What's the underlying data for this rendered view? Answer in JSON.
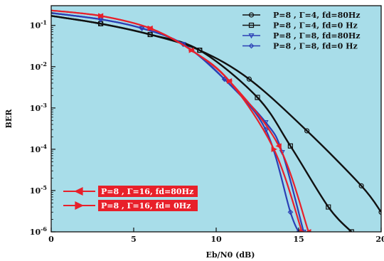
{
  "chart_data": {
    "type": "line",
    "title": "",
    "xlabel": "Eb/N0 (dB)",
    "ylabel": "BER",
    "y_scale": "log",
    "xlim": [
      0,
      20
    ],
    "ylim": [
      1e-06,
      0.3
    ],
    "grid": false,
    "background_color": "#a8dde9",
    "x_ticks": [
      {
        "value": 0,
        "label": "0"
      },
      {
        "value": 5,
        "label": "5"
      },
      {
        "value": 10,
        "label": "10"
      },
      {
        "value": 15,
        "label": "15"
      },
      {
        "value": 20,
        "label": "20"
      }
    ],
    "y_ticks": [
      {
        "value": 0.1,
        "base": "10",
        "exp": "-1"
      },
      {
        "value": 0.01,
        "base": "10",
        "exp": "-2"
      },
      {
        "value": 0.001,
        "base": "10",
        "exp": "-3"
      },
      {
        "value": 0.0001,
        "base": "10",
        "exp": "-4"
      },
      {
        "value": 1e-05,
        "base": "10",
        "exp": "-5"
      },
      {
        "value": 1e-06,
        "base": "10",
        "exp": "-6"
      }
    ],
    "series": [
      {
        "name": "P=8 , Γ=4, fd=80Hz",
        "color": "#111111",
        "marker": "circle",
        "legend_group": "top",
        "x": [
          0,
          3,
          6,
          9,
          12,
          15.5,
          18.8,
          20
        ],
        "y": [
          0.17,
          0.11,
          0.06,
          0.025,
          0.005,
          0.00028,
          1.3e-05,
          3e-06
        ]
      },
      {
        "name": "P=8 , Γ=4, fd=0 Hz",
        "color": "#111111",
        "marker": "square",
        "legend_group": "top",
        "x": [
          0,
          3,
          6,
          9,
          12.5,
          14.5,
          16.8,
          18.2
        ],
        "y": [
          0.17,
          0.11,
          0.06,
          0.025,
          0.0018,
          0.00012,
          4e-06,
          1e-06
        ]
      },
      {
        "name": "P=8 , Γ=8, fd=80Hz",
        "color": "#2b3fb5",
        "marker": "triangle-down",
        "legend_group": "top",
        "x": [
          0,
          3,
          5.5,
          8,
          10.5,
          13,
          14,
          15.3
        ],
        "y": [
          0.2,
          0.14,
          0.085,
          0.035,
          0.005,
          0.00045,
          8.5e-05,
          1e-06
        ]
      },
      {
        "name": "P=8 , Γ=8, fd=0 Hz",
        "color": "#2b3fb5",
        "marker": "diamond",
        "legend_group": "top",
        "x": [
          0,
          3,
          5.5,
          8,
          10.5,
          13,
          14.5,
          15
        ],
        "y": [
          0.2,
          0.14,
          0.085,
          0.035,
          0.005,
          0.0003,
          3e-06,
          1e-06
        ]
      },
      {
        "name": "P=8 , Γ=16, fd=80Hz",
        "color": "#e8202a",
        "marker": "triangle-left",
        "legend_group": "bottom",
        "x": [
          0,
          3,
          6,
          8.5,
          10.8,
          13.8,
          15.6
        ],
        "y": [
          0.23,
          0.17,
          0.085,
          0.025,
          0.0045,
          0.00012,
          1e-06
        ]
      },
      {
        "name": "P=8 , Γ=16, fd=  0Hz",
        "color": "#e8202a",
        "marker": "triangle-right",
        "legend_group": "bottom",
        "x": [
          0,
          3,
          6,
          8.5,
          10.8,
          13.5,
          15.2
        ],
        "y": [
          0.23,
          0.17,
          0.085,
          0.025,
          0.0045,
          0.0001,
          1e-06
        ]
      }
    ]
  }
}
